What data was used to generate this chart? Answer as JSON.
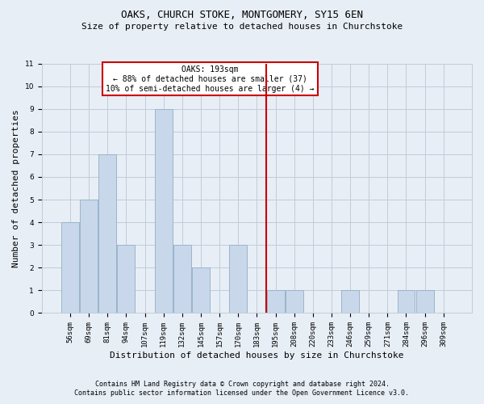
{
  "title": "OAKS, CHURCH STOKE, MONTGOMERY, SY15 6EN",
  "subtitle": "Size of property relative to detached houses in Churchstoke",
  "xlabel": "Distribution of detached houses by size in Churchstoke",
  "ylabel": "Number of detached properties",
  "footnote1": "Contains HM Land Registry data © Crown copyright and database right 2024.",
  "footnote2": "Contains public sector information licensed under the Open Government Licence v3.0.",
  "categories": [
    "56sqm",
    "69sqm",
    "81sqm",
    "94sqm",
    "107sqm",
    "119sqm",
    "132sqm",
    "145sqm",
    "157sqm",
    "170sqm",
    "183sqm",
    "195sqm",
    "208sqm",
    "220sqm",
    "233sqm",
    "246sqm",
    "259sqm",
    "271sqm",
    "284sqm",
    "296sqm",
    "309sqm"
  ],
  "values": [
    4,
    5,
    7,
    3,
    0,
    9,
    3,
    2,
    0,
    3,
    0,
    1,
    1,
    0,
    0,
    1,
    0,
    0,
    1,
    1,
    0
  ],
  "bar_color": "#c8d8ea",
  "bar_edge_color": "#9ab4cc",
  "grid_color": "#c0ccd8",
  "background_color": "#e8eef6",
  "vline_x_index": 11,
  "vline_color": "#cc0000",
  "annotation_text": "OAKS: 193sqm\n← 88% of detached houses are smaller (37)\n10% of semi-detached houses are larger (4) →",
  "ylim": [
    0,
    11
  ],
  "yticks": [
    0,
    1,
    2,
    3,
    4,
    5,
    6,
    7,
    8,
    9,
    10,
    11
  ],
  "title_fontsize": 9,
  "subtitle_fontsize": 8,
  "label_fontsize": 8,
  "tick_fontsize": 6.5,
  "annot_fontsize": 7,
  "footnote_fontsize": 6
}
